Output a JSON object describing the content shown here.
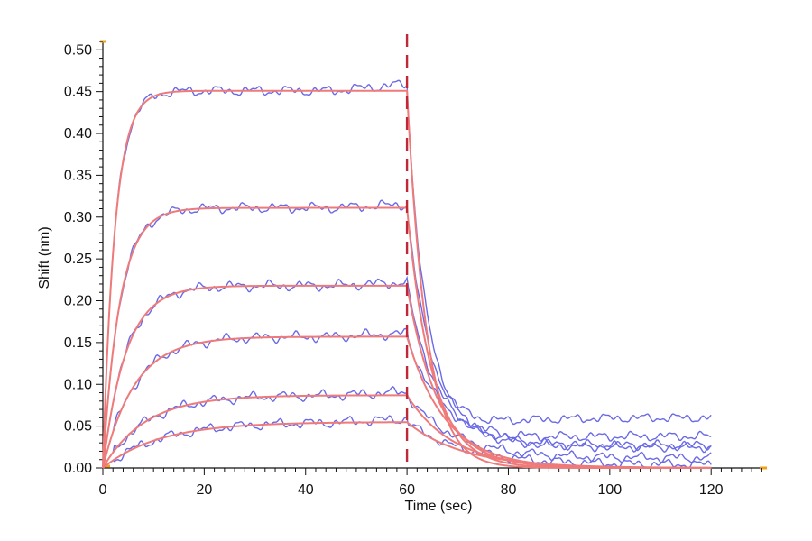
{
  "chart_data": {
    "type": "line",
    "xlabel": "Time (sec)",
    "ylabel": "Shift (nm)",
    "xlim": [
      0,
      131
    ],
    "ylim": [
      0,
      0.51
    ],
    "xticks": [
      0,
      20,
      40,
      60,
      80,
      100,
      120
    ],
    "yticks": [
      0.0,
      0.05,
      0.1,
      0.15,
      0.2,
      0.25,
      0.3,
      0.35,
      0.4,
      0.45,
      0.5
    ],
    "xtick_labels": [
      "0",
      "20",
      "40",
      "60",
      "80",
      "100",
      "120"
    ],
    "ytick_labels": [
      "0.00",
      "0.05",
      "0.10",
      "0.15",
      "0.20",
      "0.25",
      "0.30",
      "0.35",
      "0.40",
      "0.45",
      "0.50"
    ],
    "grid": false,
    "legend": "none",
    "injection_marker_x": 60,
    "colors": {
      "measured": "#6a6ae6",
      "fit": "#ef7a7a",
      "marker": "#c0283a",
      "axis": "#111111",
      "axis_end_marker": "#f0a020"
    },
    "association_end_x": 60,
    "dissociation_end_x": 120,
    "series": [
      {
        "plateau": 0.451,
        "kon_rate": 0.42,
        "koff_rate": 0.26,
        "residual": 0.0
      },
      {
        "plateau": 0.311,
        "kon_rate": 0.3,
        "koff_rate": 0.2,
        "residual": 0.0
      },
      {
        "plateau": 0.218,
        "kon_rate": 0.22,
        "koff_rate": 0.16,
        "residual": 0.0
      },
      {
        "plateau": 0.157,
        "kon_rate": 0.16,
        "koff_rate": 0.13,
        "residual": 0.0
      },
      {
        "plateau": 0.087,
        "kon_rate": 0.12,
        "koff_rate": 0.11,
        "residual": 0.0
      },
      {
        "plateau": 0.055,
        "kon_rate": 0.09,
        "koff_rate": 0.09,
        "residual": 0.0
      }
    ],
    "measured_end_values": [
      0.06,
      0.038,
      0.027,
      0.025,
      0.012,
      0.004
    ]
  }
}
